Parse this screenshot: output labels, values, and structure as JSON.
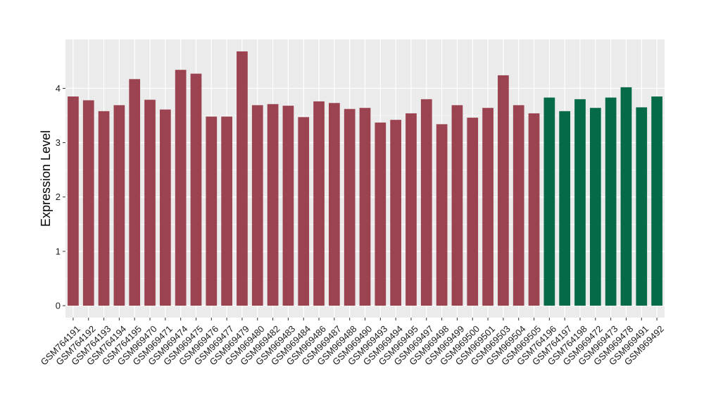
{
  "chart_data": {
    "type": "bar",
    "title": "",
    "xlabel": "",
    "ylabel": "Expression Level",
    "ylim": [
      -0.22,
      4.9
    ],
    "yticks": [
      0,
      1,
      2,
      3,
      4
    ],
    "grid": true,
    "legend": "none",
    "colors": {
      "group_a": "#9b4350",
      "group_b": "#046a47",
      "panel_bg": "#ebebeb",
      "grid": "#ffffff"
    },
    "categories": [
      "GSM764191",
      "GSM764192",
      "GSM764193",
      "GSM764194",
      "GSM764195",
      "GSM969470",
      "GSM969471",
      "GSM969474",
      "GSM969475",
      "GSM969476",
      "GSM969477",
      "GSM969479",
      "GSM969480",
      "GSM969482",
      "GSM969483",
      "GSM969484",
      "GSM969486",
      "GSM969487",
      "GSM969488",
      "GSM969490",
      "GSM969493",
      "GSM969494",
      "GSM969495",
      "GSM969497",
      "GSM969498",
      "GSM969499",
      "GSM969500",
      "GSM969501",
      "GSM969503",
      "GSM969504",
      "GSM969505",
      "GSM764196",
      "GSM764197",
      "GSM764198",
      "GSM969472",
      "GSM969473",
      "GSM969478",
      "GSM969491",
      "GSM969492"
    ],
    "values": [
      3.85,
      3.78,
      3.58,
      3.69,
      4.17,
      3.79,
      3.61,
      4.34,
      4.27,
      3.48,
      3.48,
      4.68,
      3.69,
      3.71,
      3.68,
      3.47,
      3.76,
      3.73,
      3.62,
      3.64,
      3.37,
      3.42,
      3.54,
      3.8,
      3.34,
      3.69,
      3.46,
      3.64,
      4.24,
      3.69,
      3.54,
      3.83,
      3.58,
      3.8,
      3.64,
      3.83,
      4.02,
      3.65,
      3.85
    ],
    "groups": [
      "a",
      "a",
      "a",
      "a",
      "a",
      "a",
      "a",
      "a",
      "a",
      "a",
      "a",
      "a",
      "a",
      "a",
      "a",
      "a",
      "a",
      "a",
      "a",
      "a",
      "a",
      "a",
      "a",
      "a",
      "a",
      "a",
      "a",
      "a",
      "a",
      "a",
      "a",
      "b",
      "b",
      "b",
      "b",
      "b",
      "b",
      "b",
      "b"
    ]
  }
}
